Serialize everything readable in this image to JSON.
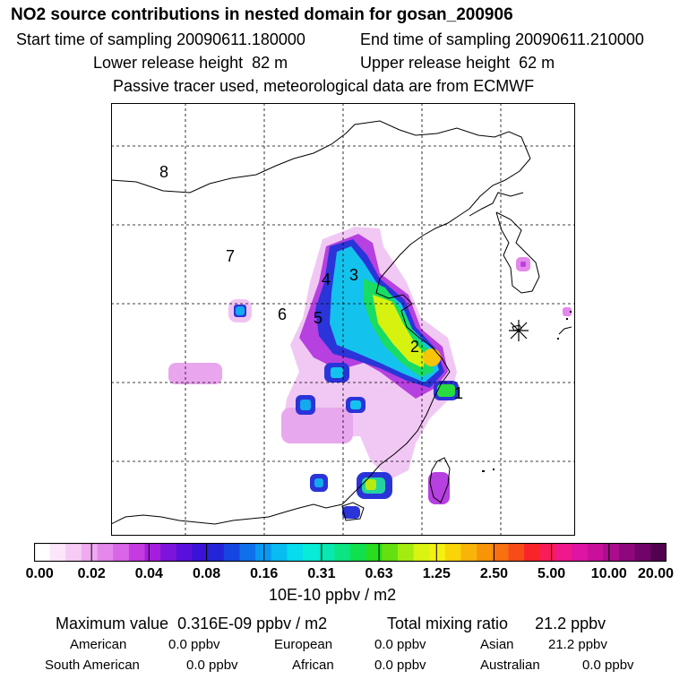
{
  "header": {
    "title": "NO2 source contributions in nested domain for gosan_200906",
    "start_label": "Start time of sampling",
    "start_value": "20090611.180000",
    "end_label": "End time of sampling",
    "end_value": "20090611.210000",
    "lower_label": "Lower release height",
    "lower_value": "82 m",
    "upper_label": "Upper release height",
    "upper_value": "62 m",
    "tracer_note": "Passive tracer used, meteorological data are from ECMWF"
  },
  "map": {
    "region_labels": [
      "1",
      "2",
      "3",
      "4",
      "5",
      "6",
      "7",
      "8"
    ],
    "receptor_marker": "receptor-star-icon"
  },
  "legend": {
    "ticks": [
      "0.00",
      "0.02",
      "0.04",
      "0.08",
      "0.16",
      "0.31",
      "0.63",
      "1.25",
      "2.50",
      "5.00",
      "10.00",
      "20.00"
    ],
    "colors": [
      "#ffffff",
      "#fbe6fb",
      "#f6ccf6",
      "#efaaf1",
      "#e488ec",
      "#d866e6",
      "#c43ce0",
      "#a61edd",
      "#7e14dc",
      "#5a10dc",
      "#3a12d8",
      "#2424d8",
      "#1646e2",
      "#1070ea",
      "#0a98f0",
      "#08bcf2",
      "#06dcee",
      "#06ecd8",
      "#08e8b0",
      "#0ae482",
      "#10e04e",
      "#28dc1e",
      "#64e010",
      "#a4ec10",
      "#d8f410",
      "#f6f010",
      "#f8d408",
      "#f8b408",
      "#f89408",
      "#f87010",
      "#f84c18",
      "#f82428",
      "#f81c58",
      "#f0188a",
      "#e014a4",
      "#c8109c",
      "#ac0c8e",
      "#8e087c",
      "#700468",
      "#520050"
    ],
    "units": "10E-10 ppbv / m2"
  },
  "footer": {
    "max_label": "Maximum value",
    "max_value": "0.316E-09 ppbv / m2",
    "total_label": "Total mixing ratio",
    "total_value": "21.2 ppbv",
    "regions": [
      {
        "name": "American",
        "value": "0.0 ppbv"
      },
      {
        "name": "European",
        "value": "0.0 ppbv"
      },
      {
        "name": "Asian",
        "value": "21.2 ppbv"
      },
      {
        "name": "South American",
        "value": "0.0 ppbv"
      },
      {
        "name": "African",
        "value": "0.0 ppbv"
      },
      {
        "name": "Australian",
        "value": "0.0 ppbv"
      }
    ]
  }
}
